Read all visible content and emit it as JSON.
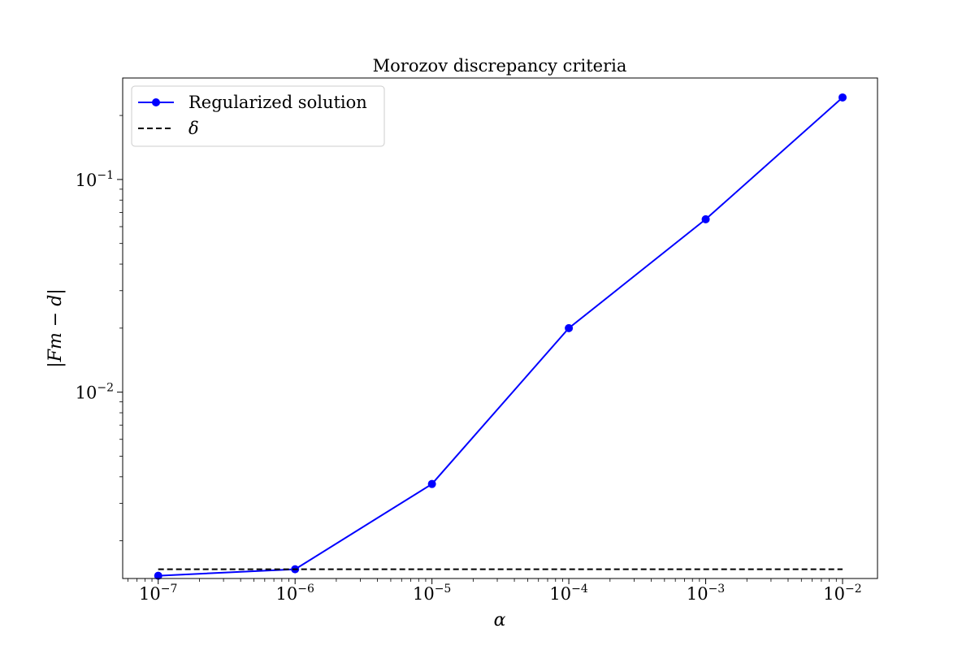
{
  "chart_data": {
    "type": "line",
    "title": "Morozov discrepancy criteria",
    "xlabel": "α",
    "ylabel": "|Fm − d|",
    "xscale": "log",
    "yscale": "log",
    "xlim": [
      5.5e-08,
      0.018
    ],
    "ylim": [
      0.00133,
      0.3
    ],
    "grid": false,
    "legend_position": "top-left",
    "xticks": [
      {
        "value": 1e-07,
        "base": "10",
        "exp": "−7"
      },
      {
        "value": 1e-06,
        "base": "10",
        "exp": "−6"
      },
      {
        "value": 1e-05,
        "base": "10",
        "exp": "−5"
      },
      {
        "value": 0.0001,
        "base": "10",
        "exp": "−4"
      },
      {
        "value": 0.001,
        "base": "10",
        "exp": "−3"
      },
      {
        "value": 0.01,
        "base": "10",
        "exp": "−2"
      }
    ],
    "yticks": [
      {
        "value": 0.01,
        "base": "10",
        "exp": "−2"
      },
      {
        "value": 0.1,
        "base": "10",
        "exp": "−1"
      }
    ],
    "series": [
      {
        "name": "Regularized solution",
        "style": "solid-markers",
        "color": "#0000ff",
        "x": [
          1e-07,
          1e-06,
          1e-05,
          0.0001,
          0.001,
          0.01
        ],
        "y": [
          0.00137,
          0.00147,
          0.0037,
          0.02,
          0.065,
          0.243
        ]
      },
      {
        "name": "δ",
        "style": "dashed",
        "color": "#000000",
        "x": [
          1e-07,
          0.01
        ],
        "y": [
          0.00147,
          0.00147
        ]
      }
    ]
  }
}
